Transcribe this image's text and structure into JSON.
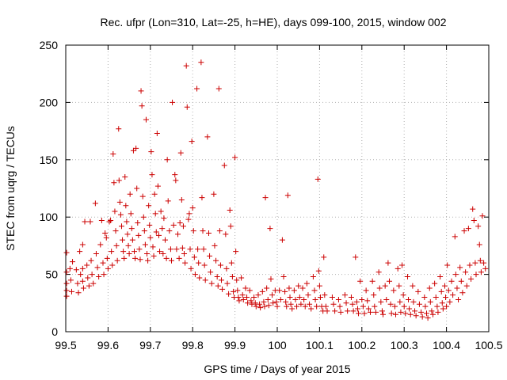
{
  "chart_data": {
    "type": "scatter",
    "title": "Rec. ufpr (Lon=310, Lat=-25, h=HE), days 099-100, 2015, window 002",
    "xlabel": "GPS time / Days of year 2015",
    "ylabel": "STEC from uqrg / TECUs",
    "xlim": [
      99.5,
      100.5
    ],
    "ylim": [
      0,
      250
    ],
    "xticks": [
      "99.5",
      "99.6",
      "99.7",
      "99.8",
      "99.9",
      "100",
      "100.1",
      "100.2",
      "100.3",
      "100.4",
      "100.5"
    ],
    "yticks": [
      "0",
      "50",
      "100",
      "150",
      "200",
      "250"
    ],
    "grid": true,
    "marker": "plus",
    "color": "#cc0000",
    "points": [
      [
        99.502,
        69
      ],
      [
        99.502,
        52
      ],
      [
        99.502,
        42
      ],
      [
        99.502,
        36
      ],
      [
        99.502,
        31
      ],
      [
        99.51,
        55
      ],
      [
        99.512,
        45
      ],
      [
        99.514,
        35
      ],
      [
        99.516,
        61
      ],
      [
        99.525,
        54
      ],
      [
        99.528,
        42
      ],
      [
        99.53,
        34
      ],
      [
        99.533,
        70
      ],
      [
        99.535,
        50
      ],
      [
        99.54,
        76
      ],
      [
        99.54,
        55
      ],
      [
        99.54,
        44
      ],
      [
        99.542,
        38
      ],
      [
        99.545,
        96
      ],
      [
        99.55,
        58
      ],
      [
        99.552,
        47
      ],
      [
        99.555,
        40
      ],
      [
        99.558,
        96
      ],
      [
        99.56,
        62
      ],
      [
        99.562,
        50
      ],
      [
        99.565,
        42
      ],
      [
        99.57,
        112
      ],
      [
        99.572,
        68
      ],
      [
        99.575,
        56
      ],
      [
        99.578,
        48
      ],
      [
        99.582,
        76
      ],
      [
        99.585,
        97
      ],
      [
        99.588,
        60
      ],
      [
        99.59,
        50
      ],
      [
        99.593,
        86
      ],
      [
        99.596,
        82
      ],
      [
        99.598,
        64
      ],
      [
        99.6,
        55
      ],
      [
        99.603,
        96
      ],
      [
        99.606,
        97
      ],
      [
        99.608,
        70
      ],
      [
        99.61,
        58
      ],
      [
        99.612,
        155
      ],
      [
        99.614,
        130
      ],
      [
        99.616,
        105
      ],
      [
        99.618,
        88
      ],
      [
        99.62,
        75
      ],
      [
        99.622,
        62
      ],
      [
        99.625,
        177
      ],
      [
        99.626,
        132
      ],
      [
        99.628,
        113
      ],
      [
        99.63,
        102
      ],
      [
        99.632,
        92
      ],
      [
        99.634,
        80
      ],
      [
        99.636,
        70
      ],
      [
        99.638,
        64
      ],
      [
        99.64,
        135
      ],
      [
        99.642,
        110
      ],
      [
        99.644,
        96
      ],
      [
        99.646,
        85
      ],
      [
        99.648,
        75
      ],
      [
        99.65,
        68
      ],
      [
        99.652,
        120
      ],
      [
        99.654,
        103
      ],
      [
        99.656,
        90
      ],
      [
        99.658,
        80
      ],
      [
        99.66,
        158
      ],
      [
        99.662,
        70
      ],
      [
        99.664,
        64
      ],
      [
        99.666,
        160
      ],
      [
        99.668,
        125
      ],
      [
        99.67,
        95
      ],
      [
        99.672,
        84
      ],
      [
        99.674,
        72
      ],
      [
        99.676,
        63
      ],
      [
        99.678,
        210
      ],
      [
        99.68,
        197
      ],
      [
        99.682,
        118
      ],
      [
        99.684,
        100
      ],
      [
        99.686,
        88
      ],
      [
        99.688,
        76
      ],
      [
        99.69,
        185
      ],
      [
        99.692,
        68
      ],
      [
        99.694,
        62
      ],
      [
        99.696,
        110
      ],
      [
        99.698,
        93
      ],
      [
        99.7,
        82
      ],
      [
        99.702,
        157
      ],
      [
        99.704,
        137
      ],
      [
        99.706,
        74
      ],
      [
        99.708,
        66
      ],
      [
        99.71,
        120
      ],
      [
        99.712,
        103
      ],
      [
        99.714,
        87
      ],
      [
        99.716,
        173
      ],
      [
        99.718,
        127
      ],
      [
        99.72,
        84
      ],
      [
        99.722,
        70
      ],
      [
        99.725,
        105
      ],
      [
        99.728,
        90
      ],
      [
        99.73,
        68
      ],
      [
        99.732,
        99
      ],
      [
        99.735,
        80
      ],
      [
        99.738,
        64
      ],
      [
        99.74,
        150
      ],
      [
        99.742,
        114
      ],
      [
        99.745,
        88
      ],
      [
        99.748,
        72
      ],
      [
        99.75,
        62
      ],
      [
        99.752,
        200
      ],
      [
        99.755,
        93
      ],
      [
        99.758,
        137
      ],
      [
        99.76,
        132
      ],
      [
        99.762,
        72
      ],
      [
        99.765,
        85
      ],
      [
        99.768,
        64
      ],
      [
        99.77,
        95
      ],
      [
        99.772,
        156
      ],
      [
        99.774,
        115
      ],
      [
        99.776,
        73
      ],
      [
        99.778,
        92
      ],
      [
        99.78,
        68
      ],
      [
        99.782,
        60
      ],
      [
        99.785,
        232
      ],
      [
        99.787,
        196
      ],
      [
        99.79,
        98
      ],
      [
        99.792,
        103
      ],
      [
        99.794,
        72
      ],
      [
        99.796,
        55
      ],
      [
        99.798,
        166
      ],
      [
        99.8,
        108
      ],
      [
        99.802,
        88
      ],
      [
        99.804,
        65
      ],
      [
        99.806,
        50
      ],
      [
        99.81,
        212
      ],
      [
        99.812,
        72
      ],
      [
        99.814,
        60
      ],
      [
        99.816,
        47
      ],
      [
        99.82,
        235
      ],
      [
        99.822,
        117
      ],
      [
        99.824,
        88
      ],
      [
        99.826,
        72
      ],
      [
        99.828,
        58
      ],
      [
        99.83,
        45
      ],
      [
        99.835,
        170
      ],
      [
        99.838,
        86
      ],
      [
        99.84,
        66
      ],
      [
        99.842,
        52
      ],
      [
        99.845,
        42
      ],
      [
        99.85,
        120
      ],
      [
        99.852,
        75
      ],
      [
        99.855,
        62
      ],
      [
        99.858,
        48
      ],
      [
        99.86,
        40
      ],
      [
        99.862,
        212
      ],
      [
        99.864,
        88
      ],
      [
        99.866,
        58
      ],
      [
        99.868,
        45
      ],
      [
        99.87,
        37
      ],
      [
        99.875,
        145
      ],
      [
        99.878,
        85
      ],
      [
        99.88,
        55
      ],
      [
        99.882,
        42
      ],
      [
        99.885,
        33
      ],
      [
        99.888,
        106
      ],
      [
        99.89,
        92
      ],
      [
        99.892,
        60
      ],
      [
        99.894,
        48
      ],
      [
        99.896,
        35
      ],
      [
        99.898,
        30
      ],
      [
        99.9,
        152
      ],
      [
        99.902,
        70
      ],
      [
        99.904,
        45
      ],
      [
        99.906,
        36
      ],
      [
        99.908,
        30
      ],
      [
        99.91,
        27
      ],
      [
        99.915,
        47
      ],
      [
        99.918,
        32
      ],
      [
        99.92,
        28
      ],
      [
        99.925,
        38
      ],
      [
        99.928,
        30
      ],
      [
        99.93,
        25
      ],
      [
        99.935,
        36
      ],
      [
        99.938,
        27
      ],
      [
        99.94,
        24
      ],
      [
        99.945,
        30
      ],
      [
        99.948,
        25
      ],
      [
        99.95,
        22
      ],
      [
        99.955,
        32
      ],
      [
        99.958,
        24
      ],
      [
        99.96,
        21
      ],
      [
        99.965,
        35
      ],
      [
        99.968,
        26
      ],
      [
        99.97,
        22
      ],
      [
        99.972,
        117
      ],
      [
        99.975,
        38
      ],
      [
        99.978,
        28
      ],
      [
        99.98,
        23
      ],
      [
        99.983,
        90
      ],
      [
        99.985,
        46
      ],
      [
        99.988,
        32
      ],
      [
        99.99,
        25
      ],
      [
        99.995,
        36
      ],
      [
        99.998,
        26
      ],
      [
        100.0,
        22
      ],
      [
        100.005,
        36
      ],
      [
        100.008,
        28
      ],
      [
        100.012,
        80
      ],
      [
        100.015,
        48
      ],
      [
        100.018,
        35
      ],
      [
        100.02,
        26
      ],
      [
        100.022,
        22
      ],
      [
        100.025,
        119
      ],
      [
        100.028,
        38
      ],
      [
        100.03,
        30
      ],
      [
        100.032,
        24
      ],
      [
        100.035,
        20
      ],
      [
        100.04,
        36
      ],
      [
        100.043,
        28
      ],
      [
        100.046,
        22
      ],
      [
        100.05,
        40
      ],
      [
        100.053,
        30
      ],
      [
        100.056,
        24
      ],
      [
        100.06,
        38
      ],
      [
        100.063,
        28
      ],
      [
        100.066,
        22
      ],
      [
        100.07,
        42
      ],
      [
        100.073,
        32
      ],
      [
        100.076,
        24
      ],
      [
        100.08,
        20
      ],
      [
        100.085,
        48
      ],
      [
        100.088,
        36
      ],
      [
        100.09,
        28
      ],
      [
        100.093,
        22
      ],
      [
        100.096,
        133
      ],
      [
        100.098,
        53
      ],
      [
        100.1,
        40
      ],
      [
        100.102,
        30
      ],
      [
        100.105,
        22
      ],
      [
        100.108,
        18
      ],
      [
        100.11,
        65
      ],
      [
        100.112,
        32
      ],
      [
        100.115,
        22
      ],
      [
        100.118,
        18
      ],
      [
        100.13,
        30
      ],
      [
        100.133,
        24
      ],
      [
        100.136,
        18
      ],
      [
        100.145,
        28
      ],
      [
        100.148,
        22
      ],
      [
        100.15,
        17
      ],
      [
        100.16,
        32
      ],
      [
        100.163,
        25
      ],
      [
        100.166,
        18
      ],
      [
        100.175,
        30
      ],
      [
        100.178,
        24
      ],
      [
        100.18,
        18
      ],
      [
        100.185,
        65
      ],
      [
        100.188,
        26
      ],
      [
        100.19,
        20
      ],
      [
        100.192,
        16
      ],
      [
        100.196,
        44
      ],
      [
        100.2,
        28
      ],
      [
        100.203,
        22
      ],
      [
        100.206,
        16
      ],
      [
        100.21,
        36
      ],
      [
        100.213,
        27
      ],
      [
        100.216,
        20
      ],
      [
        100.22,
        17
      ],
      [
        100.225,
        44
      ],
      [
        100.228,
        32
      ],
      [
        100.23,
        22
      ],
      [
        100.233,
        17
      ],
      [
        100.24,
        52
      ],
      [
        100.242,
        38
      ],
      [
        100.245,
        26
      ],
      [
        100.248,
        18
      ],
      [
        100.25,
        15
      ],
      [
        100.255,
        40
      ],
      [
        100.258,
        28
      ],
      [
        100.262,
        60
      ],
      [
        100.265,
        44
      ],
      [
        100.268,
        24
      ],
      [
        100.27,
        16
      ],
      [
        100.275,
        36
      ],
      [
        100.278,
        22
      ],
      [
        100.28,
        15
      ],
      [
        100.285,
        55
      ],
      [
        100.288,
        40
      ],
      [
        100.29,
        26
      ],
      [
        100.292,
        17
      ],
      [
        100.295,
        58
      ],
      [
        100.298,
        32
      ],
      [
        100.3,
        22
      ],
      [
        100.303,
        16
      ],
      [
        100.308,
        48
      ],
      [
        100.31,
        28
      ],
      [
        100.312,
        20
      ],
      [
        100.315,
        15
      ],
      [
        100.32,
        40
      ],
      [
        100.322,
        26
      ],
      [
        100.325,
        18
      ],
      [
        100.328,
        14
      ],
      [
        100.333,
        35
      ],
      [
        100.336,
        24
      ],
      [
        100.34,
        17
      ],
      [
        100.343,
        13
      ],
      [
        100.348,
        30
      ],
      [
        100.35,
        22
      ],
      [
        100.353,
        16
      ],
      [
        100.356,
        12
      ],
      [
        100.36,
        38
      ],
      [
        100.362,
        26
      ],
      [
        100.365,
        18
      ],
      [
        100.368,
        15
      ],
      [
        100.372,
        42
      ],
      [
        100.375,
        30
      ],
      [
        100.378,
        22
      ],
      [
        100.38,
        17
      ],
      [
        100.385,
        48
      ],
      [
        100.388,
        35
      ],
      [
        100.39,
        25
      ],
      [
        100.392,
        20
      ],
      [
        100.396,
        40
      ],
      [
        100.398,
        30
      ],
      [
        100.4,
        22
      ],
      [
        100.402,
        58
      ],
      [
        100.405,
        36
      ],
      [
        100.408,
        26
      ],
      [
        100.412,
        44
      ],
      [
        100.415,
        32
      ],
      [
        100.42,
        83
      ],
      [
        100.422,
        50
      ],
      [
        100.425,
        38
      ],
      [
        100.428,
        28
      ],
      [
        100.432,
        56
      ],
      [
        100.435,
        44
      ],
      [
        100.438,
        34
      ],
      [
        100.442,
        88
      ],
      [
        100.445,
        52
      ],
      [
        100.448,
        40
      ],
      [
        100.452,
        90
      ],
      [
        100.455,
        58
      ],
      [
        100.458,
        46
      ],
      [
        100.462,
        107
      ],
      [
        100.465,
        97
      ],
      [
        100.468,
        60
      ],
      [
        100.47,
        50
      ],
      [
        100.475,
        92
      ],
      [
        100.478,
        76
      ],
      [
        100.48,
        62
      ],
      [
        100.482,
        52
      ],
      [
        100.485,
        101
      ],
      [
        100.488,
        60
      ],
      [
        100.492,
        55
      ]
    ]
  }
}
